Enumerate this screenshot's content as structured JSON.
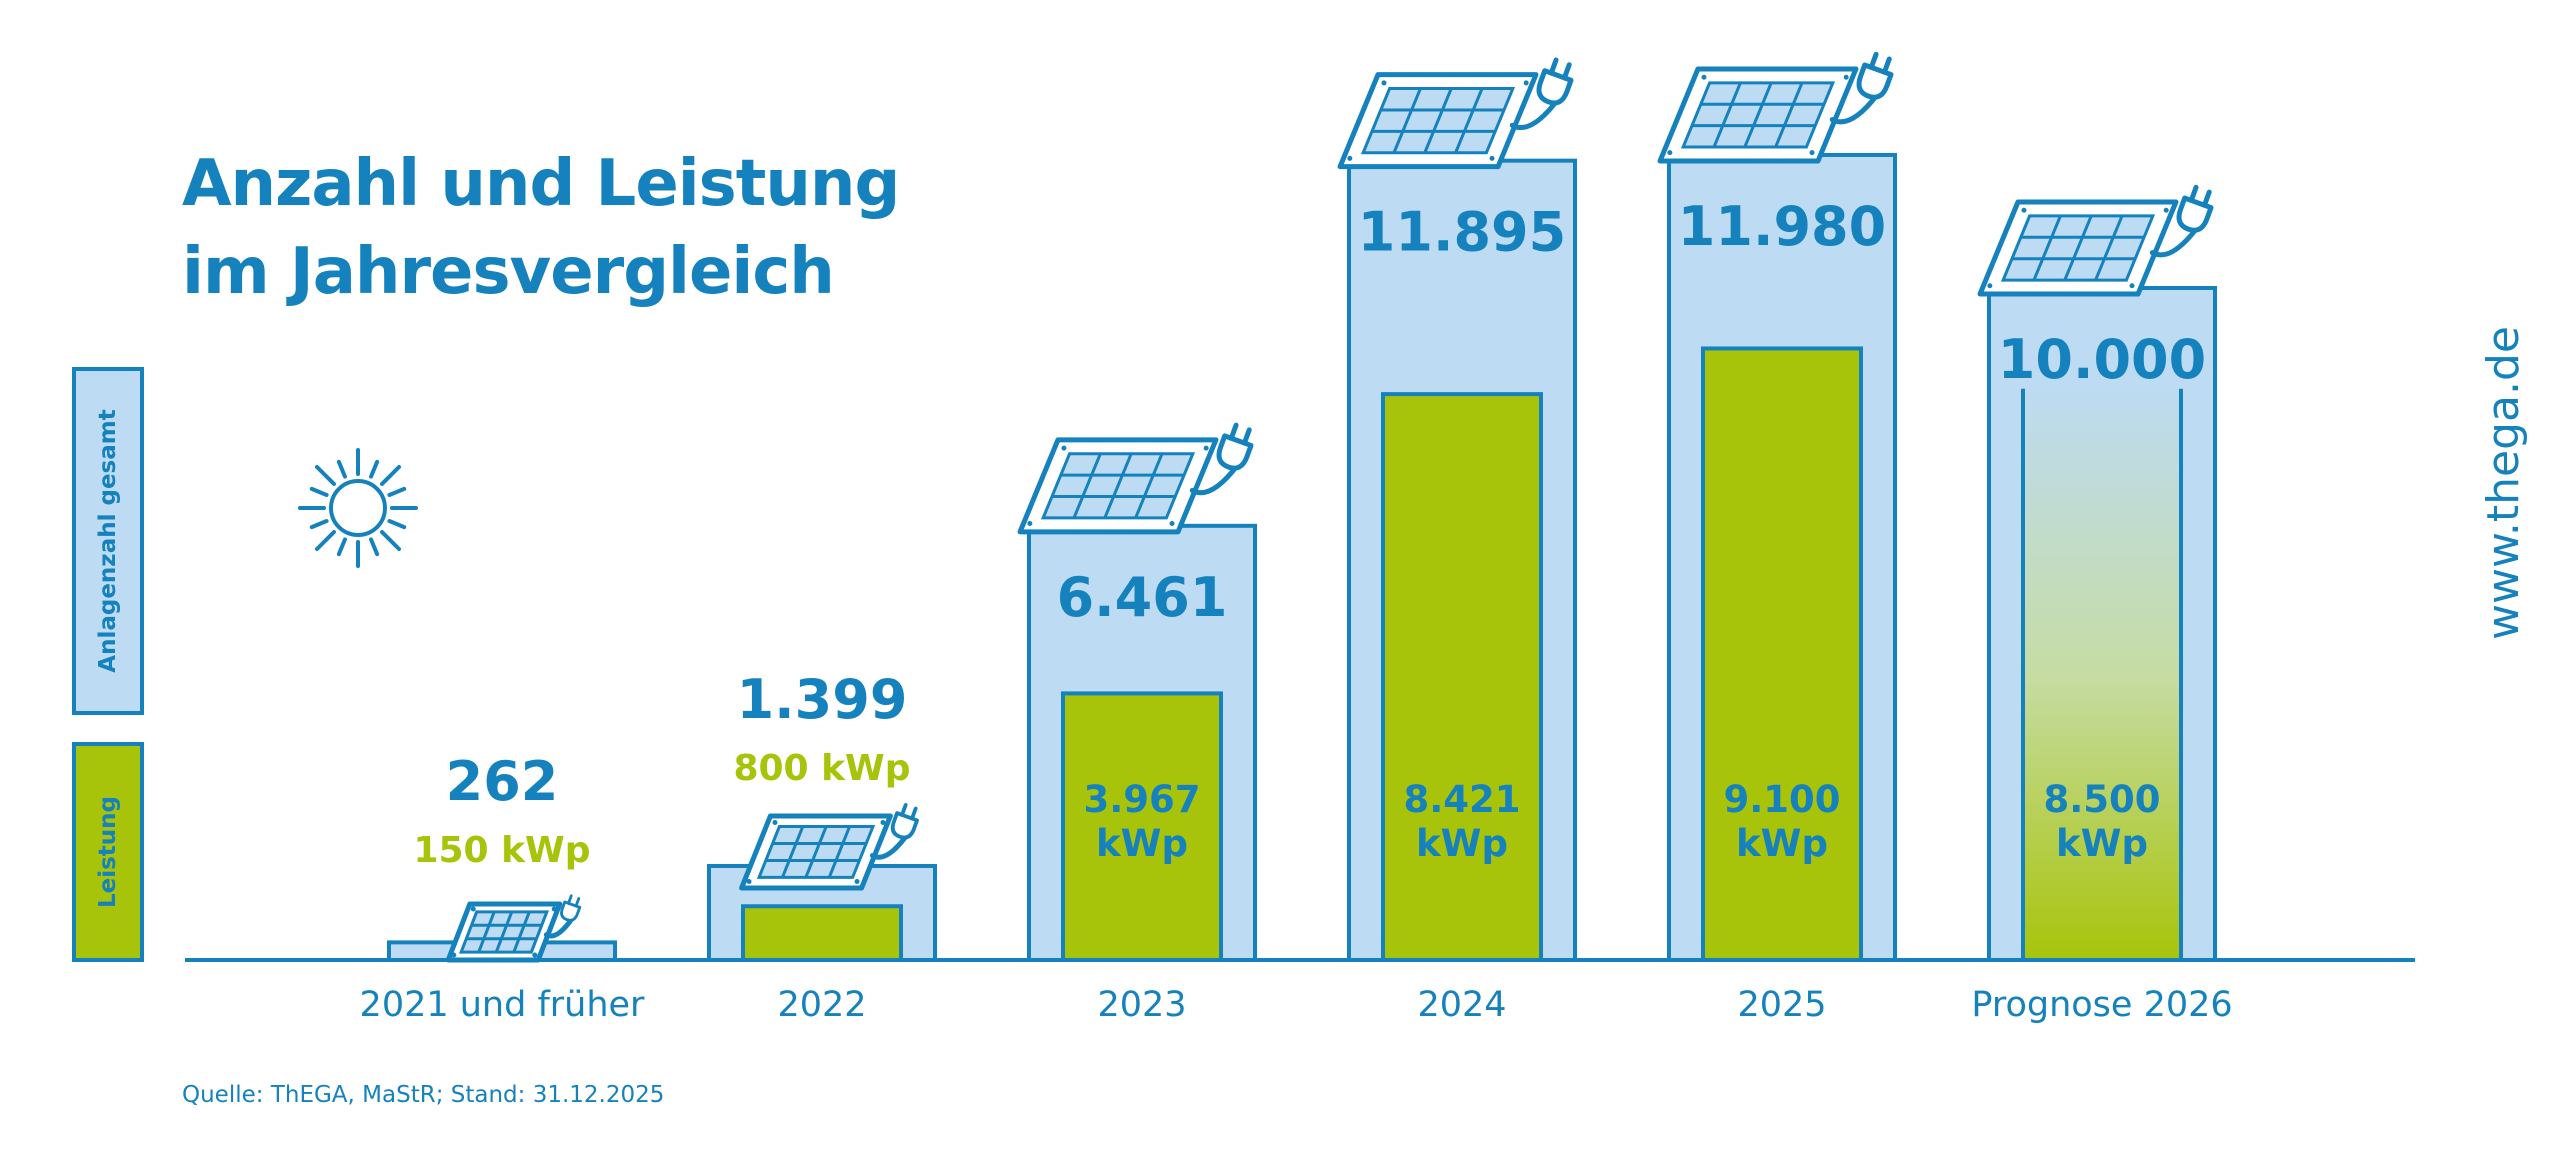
{
  "title": {
    "line1": "Anzahl und Leistung",
    "line2": "im Jahresvergleich"
  },
  "legend": {
    "count_label": "Anlagenzahl gesamt",
    "power_label": "Leistung"
  },
  "website": "www.thega.de",
  "source": "Quelle: ThEGA, MaStR; Stand: 31.12.2025",
  "colors": {
    "blue": "#1582bd",
    "light_blue": "#bddbf2",
    "green": "#a8c40a"
  },
  "icons": [
    "sun-icon",
    "solar-panel-icon",
    "plug-icon"
  ],
  "chart_data": {
    "type": "bar",
    "title": "Anzahl und Leistung im Jahresvergleich",
    "categories": [
      "2021 und früher",
      "2022",
      "2023",
      "2024",
      "2025",
      "Prognose 2026"
    ],
    "series": [
      {
        "name": "Anlagenzahl gesamt",
        "values": [
          262,
          1399,
          6461,
          11895,
          11980,
          10000
        ],
        "labels": [
          "262",
          "1.399",
          "6.461",
          "11.895",
          "11.980",
          "10.000"
        ]
      },
      {
        "name": "Leistung",
        "unit": "kWp",
        "values": [
          150,
          800,
          3967,
          8421,
          9100,
          8500
        ],
        "labels": [
          "150 kWp",
          "800 kWp",
          "3.967 kWp",
          "8.421 kWp",
          "9.100 kWp",
          "8.500 kWp"
        ]
      }
    ],
    "forecast_category": "Prognose 2026",
    "ylim": [
      0,
      12500
    ],
    "grid": false,
    "legend_position": "left"
  }
}
